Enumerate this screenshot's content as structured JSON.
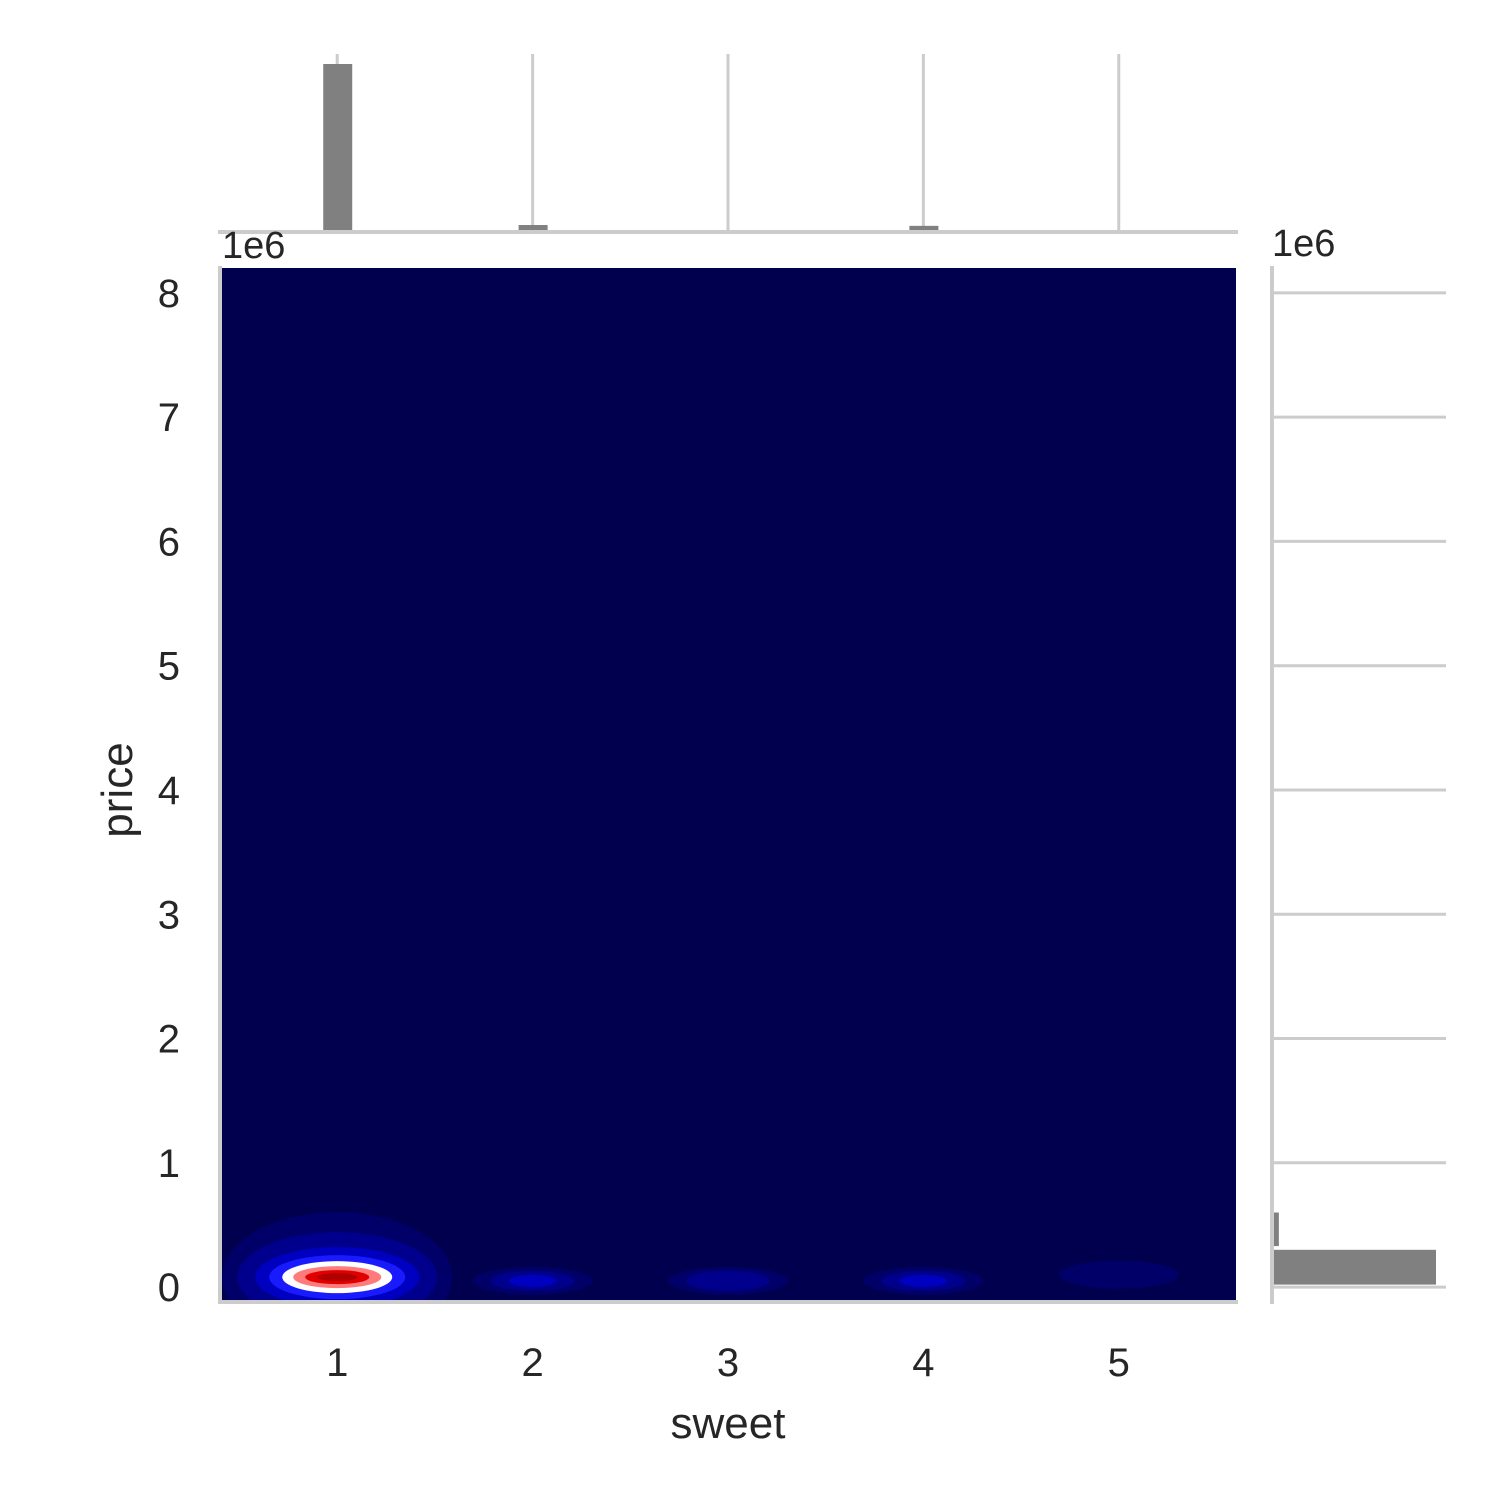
{
  "chart_data": {
    "type": "kde-jointplot",
    "xlabel": "sweet",
    "ylabel": "price",
    "x_ticks": [
      1,
      2,
      3,
      4,
      5
    ],
    "y_ticks": [
      0,
      1,
      2,
      3,
      4,
      5,
      6,
      7,
      8
    ],
    "x_tick_labels": [
      "1",
      "2",
      "3",
      "4",
      "5"
    ],
    "y_tick_labels": [
      "0",
      "1",
      "2",
      "3",
      "4",
      "5",
      "6",
      "7",
      "8"
    ],
    "y_offset_label": "1e6",
    "marginal_x_offset_label": "1e6",
    "marginal_y_offset_label": "1e6",
    "xlim": [
      0.4,
      5.6
    ],
    "ylim": [
      -0.12,
      8.2
    ],
    "grid": true,
    "colors": {
      "kde_background": "#00004f",
      "kde_levels": [
        "#00004f",
        "#000068",
        "#00008c",
        "#0000c0",
        "#1a1aff",
        "#ffffff",
        "#ff7a7a",
        "#e00000",
        "#b00000"
      ],
      "histogram": "#808080",
      "grid": "#cccccc"
    },
    "kde_peaks": [
      {
        "x": 1,
        "y": 0.08,
        "level": 8
      },
      {
        "x": 2,
        "y": 0.05,
        "level": 3
      },
      {
        "x": 3,
        "y": 0.05,
        "level": 2
      },
      {
        "x": 4,
        "y": 0.05,
        "level": 3
      },
      {
        "x": 5,
        "y": 0.1,
        "level": 1
      }
    ],
    "marginal_x_hist": {
      "bars": [
        {
          "x": 1,
          "height": 1.0
        },
        {
          "x": 2,
          "height": 0.03
        },
        {
          "x": 4,
          "height": 0.025
        }
      ]
    },
    "marginal_y_hist": {
      "bars": [
        {
          "y_low": 0.02,
          "y_high": 0.3,
          "length": 1.0
        },
        {
          "y_low": 0.33,
          "y_high": 0.6,
          "length": 0.03
        }
      ]
    }
  }
}
